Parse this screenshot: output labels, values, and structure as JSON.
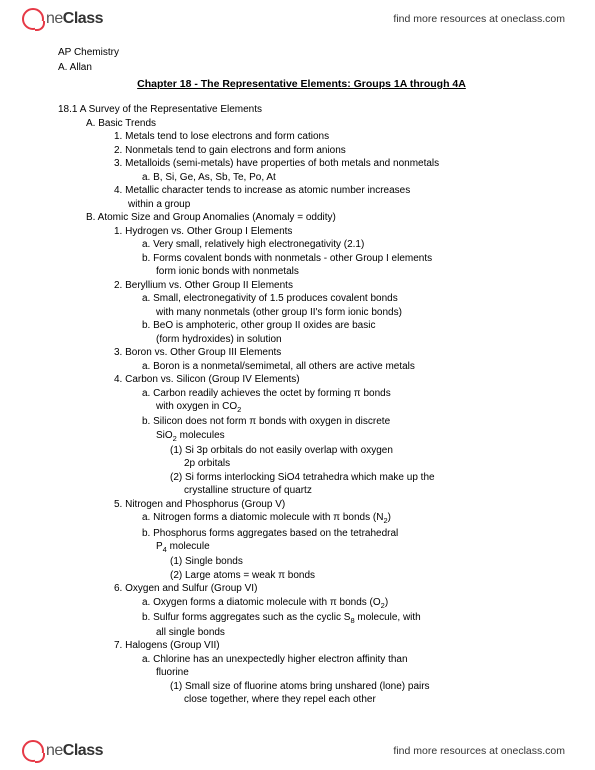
{
  "brand": {
    "prefix": "ne",
    "bold": "Class"
  },
  "header_link": "find more resources at oneclass.com",
  "footer_link": "find more resources at oneclass.com",
  "course": "AP Chemistry",
  "author": "A. Allan",
  "chapter_title": "Chapter 18 - The Representative Elements: Groups 1A through 4A",
  "section_num": "18.1 A Survey of the Representative Elements",
  "A_label": "A.  Basic Trends",
  "A1": "1.  Metals tend to lose electrons and form cations",
  "A2": "2.  Nonmetals tend to gain electrons and form anions",
  "A3": "3.  Metalloids (semi-metals) have properties of both metals and nonmetals",
  "A3a": "a.  B, Si, Ge, As, Sb, Te, Po, At",
  "A4": "4.  Metallic character tends to increase as atomic number increases",
  "A4c": "within a group",
  "B_label": "B.  Atomic Size and Group Anomalies (Anomaly = oddity)",
  "B1": "1.  Hydrogen vs. Other Group I Elements",
  "B1a": "a.  Very small, relatively high electronegativity (2.1)",
  "B1b": "b.  Forms covalent bonds with nonmetals - other Group I elements",
  "B1bc": "form ionic bonds with nonmetals",
  "B2": "2.  Beryllium vs. Other Group II Elements",
  "B2a": "a.  Small, electronegativity of 1.5 produces covalent bonds",
  "B2ac": "with many nonmetals (other group II's form ionic bonds)",
  "B2b": "b.  BeO is amphoteric, other group II oxides are basic",
  "B2bc": "(form hydroxides) in solution",
  "B3": "3.  Boron vs. Other Group III Elements",
  "B3a": "a.  Boron is a nonmetal/semimetal, all others are active metals",
  "B4": "4.  Carbon vs. Silicon (Group IV Elements)",
  "B4a_pre": "a.  Carbon readily achieves the octet by forming π bonds",
  "B4ac_pre": "with oxygen in CO",
  "B4ac_sub": "2",
  "B4b": "b.  Silicon does not form π bonds with oxygen in discrete",
  "B4bc_pre": "SiO",
  "B4bc_sub": "2",
  "B4bc_post": " molecules",
  "B4b1": "(1) Si 3p orbitals do not easily overlap with oxygen",
  "B4b1c": "2p orbitals",
  "B4b2": "(2) Si forms interlocking SiO4 tetrahedra which make up the",
  "B4b2c": "crystalline structure of quartz",
  "B5": "5.  Nitrogen and Phosphorus (Group V)",
  "B5a_pre": "a.  Nitrogen forms a diatomic molecule with π bonds (N",
  "B5a_sub": "2",
  "B5a_post": ")",
  "B5b": "b.  Phosphorus forms aggregates based on the tetrahedral",
  "B5bc_pre": "P",
  "B5bc_sub": "4",
  "B5bc_post": " molecule",
  "B5b1": "(1) Single bonds",
  "B5b2": "(2) Large atoms = weak π bonds",
  "B6": "6.  Oxygen and Sulfur (Group VI)",
  "B6a_pre": "a.  Oxygen forms a diatomic molecule with π bonds (O",
  "B6a_sub": "2",
  "B6a_post": ")",
  "B6b_pre": "b.  Sulfur forms aggregates such as the cyclic S",
  "B6b_sub": "8",
  "B6b_post": " molecule, with",
  "B6bc": "all single bonds",
  "B7": "7.  Halogens (Group VII)",
  "B7a": "a.  Chlorine has an unexpectedly higher electron affinity than",
  "B7ac": "fluorine",
  "B7a1": "(1) Small size of fluorine atoms bring unshared (lone) pairs",
  "B7a1c": "close together, where they repel each other"
}
